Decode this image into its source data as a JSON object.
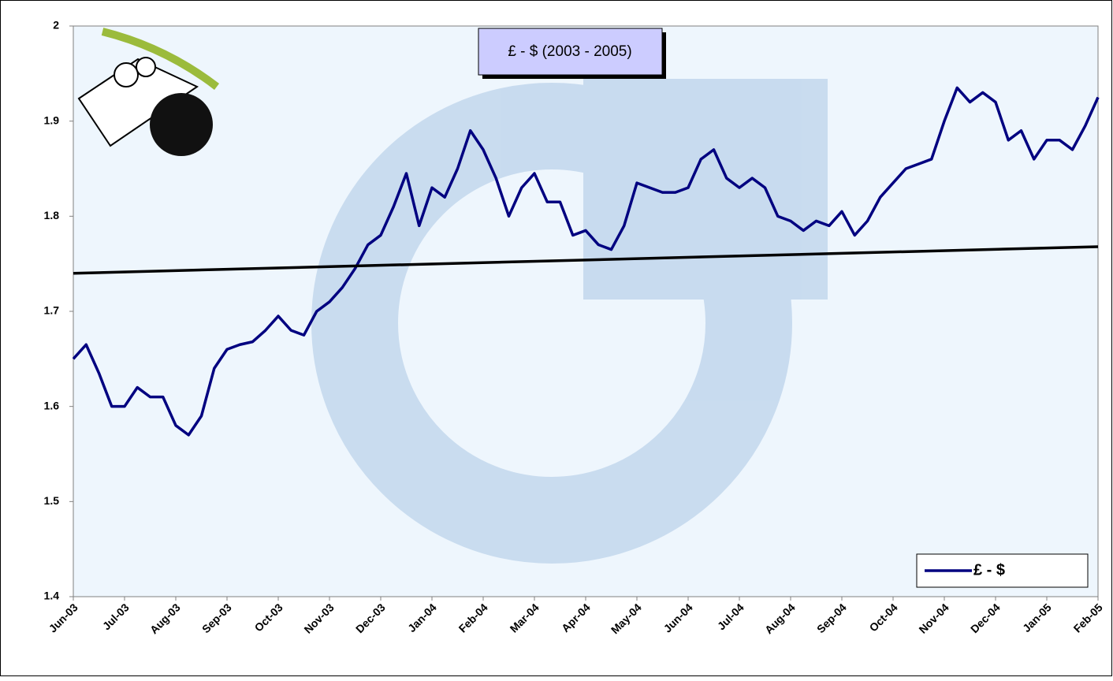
{
  "chart_data": {
    "type": "line",
    "title": "£ - $ (2003 - 2005)",
    "xlim": [
      0,
      20
    ],
    "xticks": [
      {
        "value": 0,
        "label": "Jun-03"
      },
      {
        "value": 1,
        "label": "Jul-03"
      },
      {
        "value": 2,
        "label": "Aug-03"
      },
      {
        "value": 3,
        "label": "Sep-03"
      },
      {
        "value": 4,
        "label": "Oct-03"
      },
      {
        "value": 5,
        "label": "Nov-03"
      },
      {
        "value": 6,
        "label": "Dec-03"
      },
      {
        "value": 7,
        "label": "Jan-04"
      },
      {
        "value": 8,
        "label": "Feb-04"
      },
      {
        "value": 9,
        "label": "Mar-04"
      },
      {
        "value": 10,
        "label": "Apr-04"
      },
      {
        "value": 11,
        "label": "May-04"
      },
      {
        "value": 12,
        "label": "Jun-04"
      },
      {
        "value": 13,
        "label": "Jul-04"
      },
      {
        "value": 14,
        "label": "Aug-04"
      },
      {
        "value": 15,
        "label": "Sep-04"
      },
      {
        "value": 16,
        "label": "Oct-04"
      },
      {
        "value": 17,
        "label": "Nov-04"
      },
      {
        "value": 18,
        "label": "Dec-04"
      },
      {
        "value": 19,
        "label": "Jan-05"
      },
      {
        "value": 20,
        "label": "Feb-05"
      }
    ],
    "ylim": [
      1.4,
      2
    ],
    "yticks": [
      1.4,
      1.5,
      1.6,
      1.7,
      1.8,
      1.9,
      2
    ],
    "x": [
      0,
      0.25,
      0.5,
      0.75,
      1,
      1.25,
      1.5,
      1.75,
      2,
      2.25,
      2.5,
      2.75,
      3,
      3.25,
      3.5,
      3.75,
      4,
      4.25,
      4.5,
      4.75,
      5,
      5.25,
      5.5,
      5.75,
      6,
      6.25,
      6.5,
      6.75,
      7,
      7.25,
      7.5,
      7.75,
      8,
      8.25,
      8.5,
      8.75,
      9,
      9.25,
      9.5,
      9.75,
      10,
      10.25,
      10.5,
      10.75,
      11,
      11.25,
      11.5,
      11.75,
      12,
      12.25,
      12.5,
      12.75,
      13,
      13.25,
      13.5,
      13.75,
      14,
      14.25,
      14.5,
      14.75,
      15,
      15.25,
      15.5,
      15.75,
      16,
      16.25,
      16.5,
      16.75,
      17,
      17.25,
      17.5,
      17.75,
      18,
      18.25,
      18.5,
      18.75,
      19,
      19.25,
      19.5,
      19.75,
      20
    ],
    "series": [
      {
        "name": "£ - $",
        "color": "#000080",
        "values": [
          1.65,
          1.665,
          1.635,
          1.6,
          1.6,
          1.62,
          1.61,
          1.61,
          1.58,
          1.57,
          1.59,
          1.64,
          1.66,
          1.665,
          1.668,
          1.68,
          1.695,
          1.68,
          1.675,
          1.7,
          1.71,
          1.725,
          1.745,
          1.77,
          1.78,
          1.81,
          1.845,
          1.79,
          1.83,
          1.82,
          1.85,
          1.89,
          1.87,
          1.84,
          1.8,
          1.83,
          1.845,
          1.815,
          1.815,
          1.78,
          1.785,
          1.77,
          1.765,
          1.79,
          1.835,
          1.83,
          1.825,
          1.825,
          1.83,
          1.86,
          1.87,
          1.84,
          1.83,
          1.84,
          1.83,
          1.8,
          1.795,
          1.785,
          1.795,
          1.79,
          1.805,
          1.78,
          1.795,
          1.82,
          1.835,
          1.85,
          1.855,
          1.86,
          1.9,
          1.935,
          1.92,
          1.93,
          1.92,
          1.88,
          1.89,
          1.86,
          1.88,
          1.88,
          1.87,
          1.895,
          1.925
        ]
      }
    ],
    "trendline": {
      "x": [
        0,
        20
      ],
      "values": [
        1.74,
        1.768
      ],
      "color": "#000000"
    },
    "legend": "lower right"
  }
}
